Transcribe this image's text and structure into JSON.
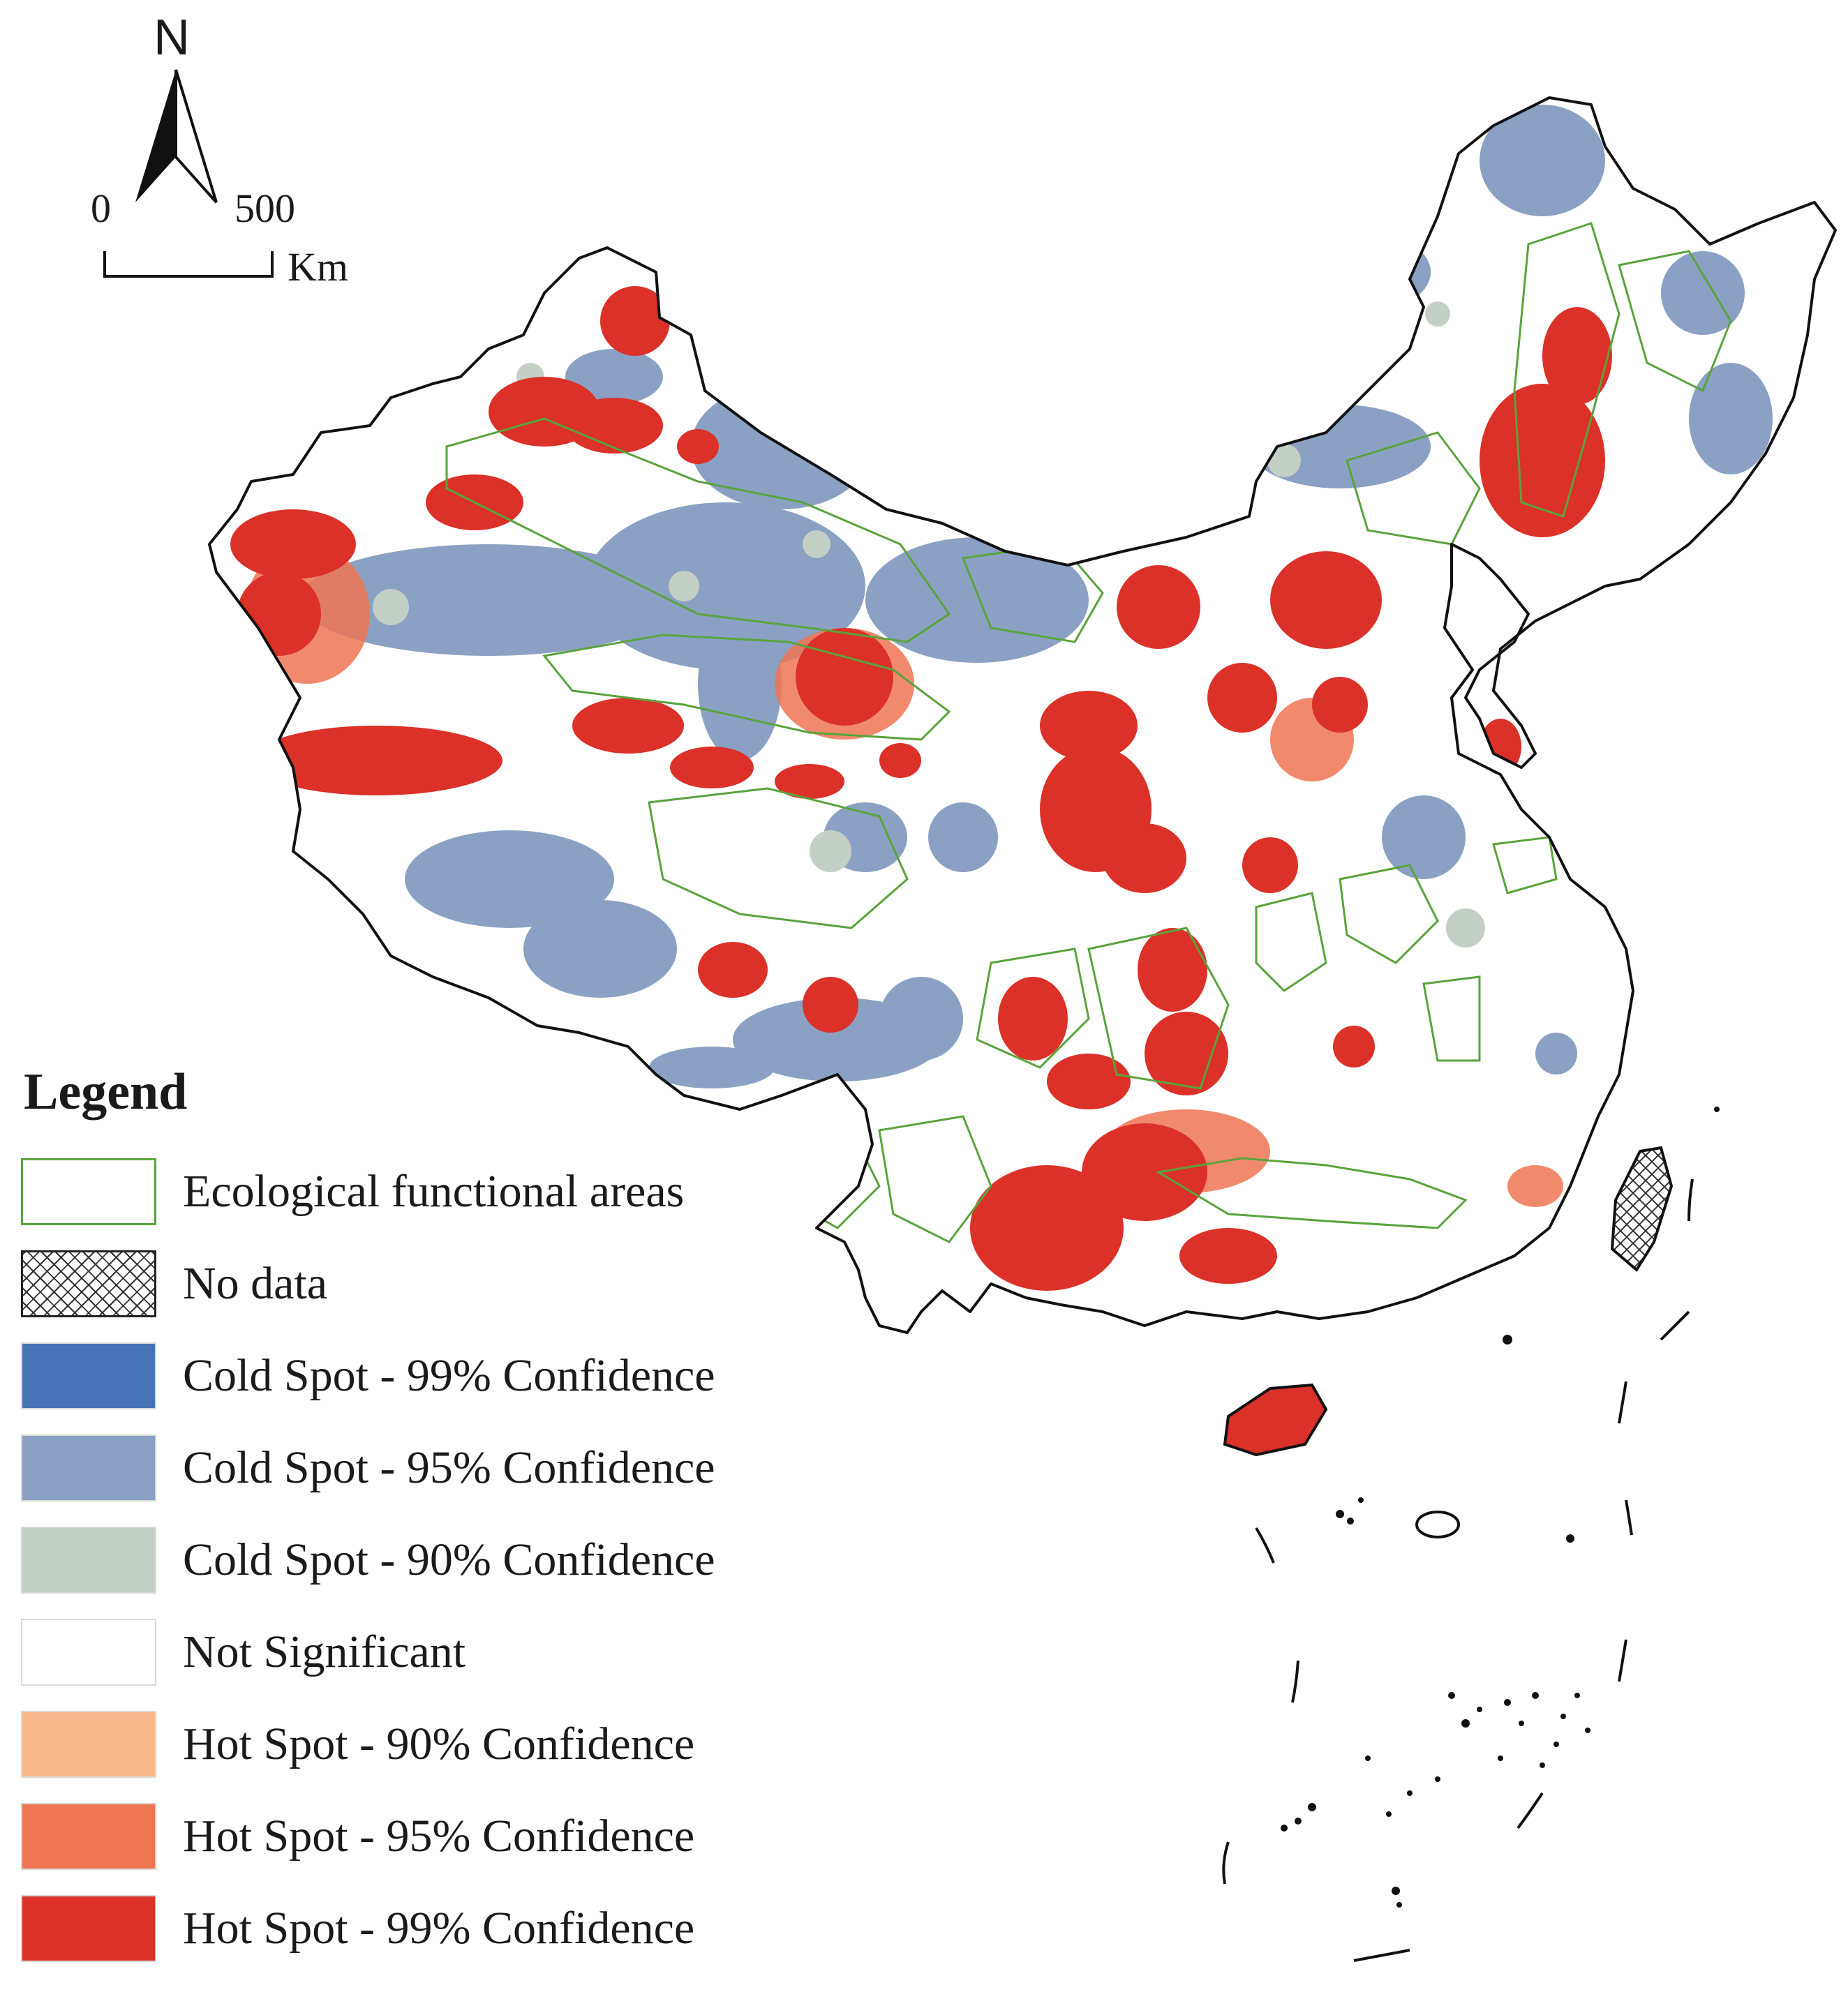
{
  "north_arrow": {
    "letter": "N"
  },
  "scale_bar": {
    "start": "0",
    "end": "500",
    "unit": "Km"
  },
  "legend": {
    "title": "Legend",
    "items": [
      {
        "label": "Ecological functional areas",
        "kind": "outline",
        "color": "#5aa33c"
      },
      {
        "label": "No data",
        "kind": "hatch",
        "color": "#333333"
      },
      {
        "label": "Cold Spot - 99% Confidence",
        "kind": "fill",
        "color": "#4a74b8"
      },
      {
        "label": "Cold Spot - 95% Confidence",
        "kind": "fill",
        "color": "#8aa1c3"
      },
      {
        "label": "Cold Spot - 90% Confidence",
        "kind": "fill",
        "color": "#c4cfc5"
      },
      {
        "label": "Not Significant",
        "kind": "fill",
        "color": "#ffffff"
      },
      {
        "label": "Hot Spot - 90% Confidence",
        "kind": "fill",
        "color": "#f9b98d"
      },
      {
        "label": "Hot Spot - 95% Confidence",
        "kind": "fill",
        "color": "#ee7652"
      },
      {
        "label": "Hot Spot - 99% Confidence",
        "kind": "fill",
        "color": "#db3128"
      }
    ]
  },
  "colors": {
    "boundary": "#111111",
    "eco_outline": "#5aa33c",
    "cold_95": "#8aa1c3",
    "cold_90": "#c4cfc5",
    "hot_95": "#ee7652",
    "hot_99": "#db3128"
  }
}
